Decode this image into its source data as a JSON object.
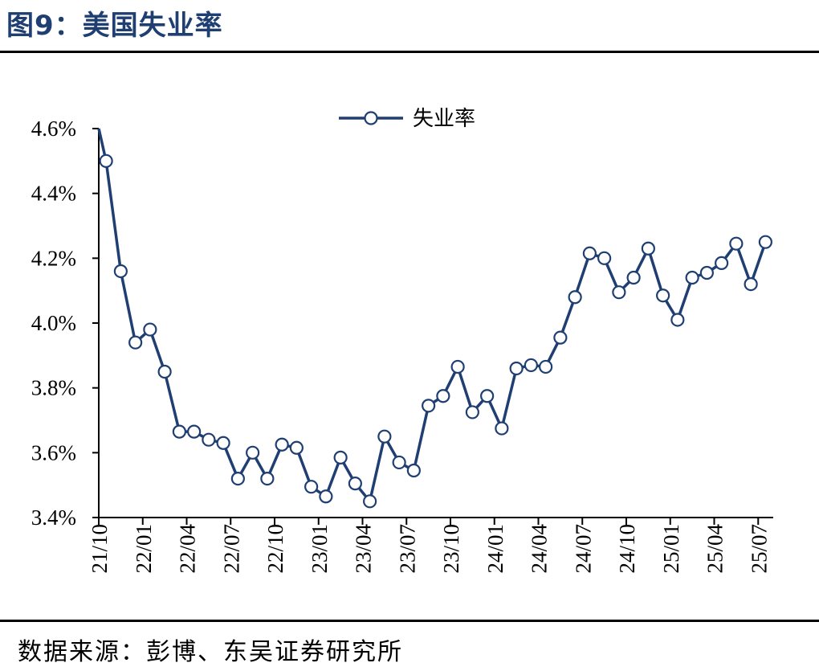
{
  "header": {
    "title": "图9：美国失业率"
  },
  "footer": {
    "source": "数据来源：彭博、东吴证券研究所"
  },
  "colors": {
    "series": "#1f3f73",
    "marker_fill": "#ffffff",
    "axis": "#000000",
    "title": "#1f3f73"
  },
  "chart_data": {
    "type": "line",
    "title": "",
    "xlabel": "",
    "ylabel": "",
    "ylim": [
      3.4,
      4.6
    ],
    "yticks": [
      3.4,
      3.6,
      3.8,
      4.0,
      4.2,
      4.4,
      4.6
    ],
    "ytick_labels": [
      "3.4%",
      "3.6%",
      "3.8%",
      "4.0%",
      "4.2%",
      "4.4%",
      "4.6%"
    ],
    "xtick_labels": [
      "21/10",
      "22/01",
      "22/04",
      "22/07",
      "22/10",
      "23/01",
      "23/04",
      "23/07",
      "23/10",
      "24/01",
      "24/04",
      "24/07",
      "24/10",
      "25/01",
      "25/04",
      "25/07"
    ],
    "legend": {
      "position": "top-center"
    },
    "series": [
      {
        "name": "失业率",
        "start_value": 4.6,
        "values": [
          4.5,
          4.16,
          3.94,
          3.98,
          3.85,
          3.665,
          3.665,
          3.64,
          3.63,
          3.52,
          3.6,
          3.52,
          3.625,
          3.615,
          3.495,
          3.465,
          3.585,
          3.505,
          3.45,
          3.65,
          3.57,
          3.545,
          3.745,
          3.775,
          3.865,
          3.725,
          3.775,
          3.675,
          3.86,
          3.87,
          3.865,
          3.955,
          4.08,
          4.215,
          4.2,
          4.095,
          4.14,
          4.23,
          4.085,
          4.01,
          4.14,
          4.155,
          4.185,
          4.245,
          4.12,
          4.25
        ]
      }
    ]
  }
}
